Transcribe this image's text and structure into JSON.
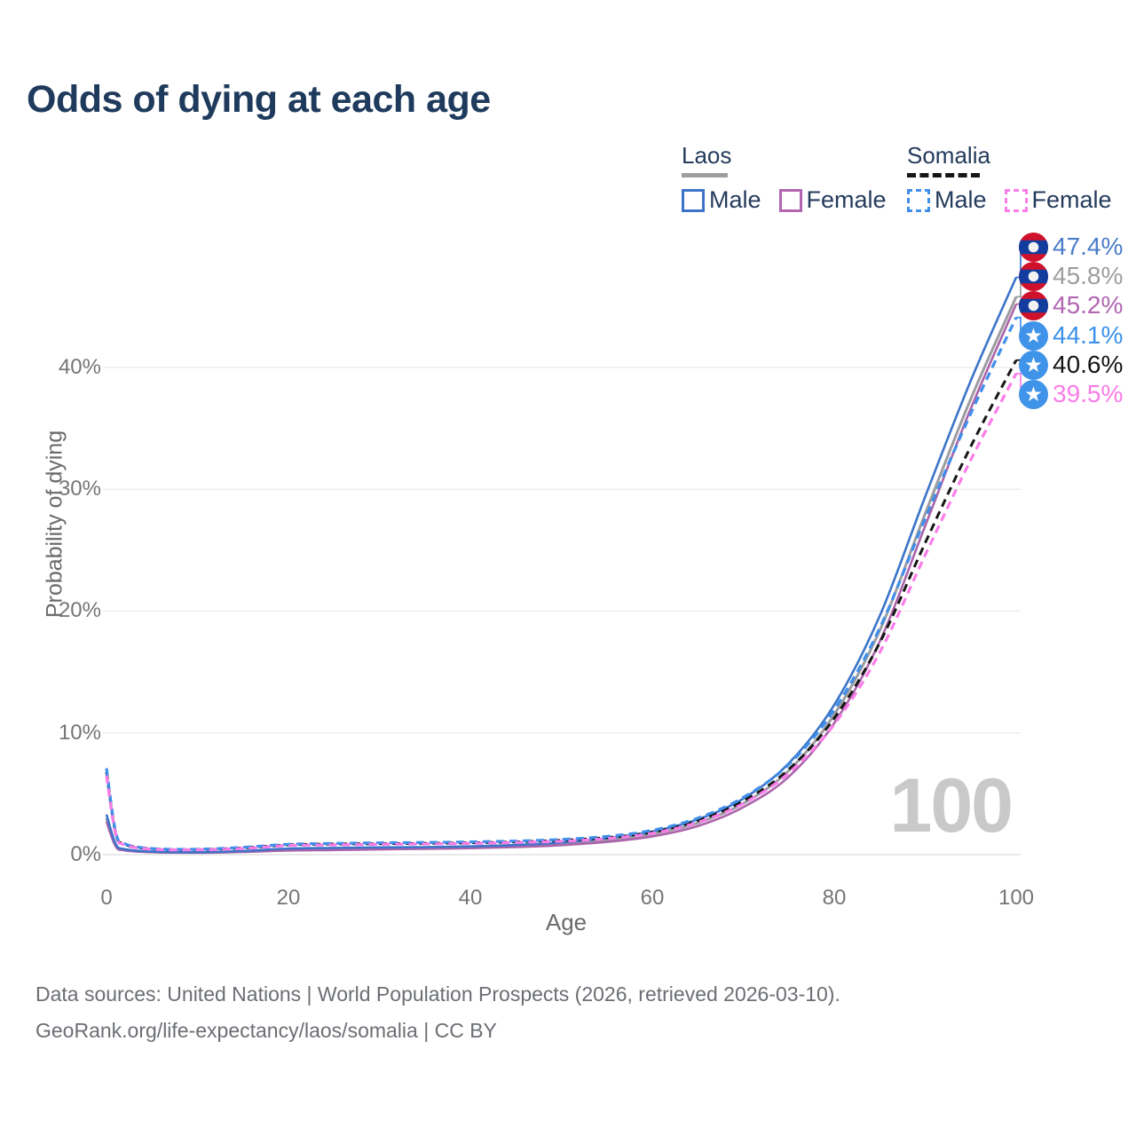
{
  "title": "Odds of dying at each age",
  "legend": {
    "groups": [
      {
        "country": "Laos",
        "items": [
          {
            "label": "Male"
          },
          {
            "label": "Female"
          }
        ]
      },
      {
        "country": "Somalia",
        "items": [
          {
            "label": "Male"
          },
          {
            "label": "Female"
          }
        ]
      }
    ]
  },
  "chart_data": {
    "type": "line",
    "title": "Odds of dying at each age",
    "xlabel": "Age",
    "ylabel": "Probability of dying",
    "xlim": [
      0,
      100
    ],
    "ylim": [
      0,
      48
    ],
    "grid": "horizontal-only",
    "legend_position": "top-right",
    "age_marker": "100",
    "xticks": [
      0,
      20,
      40,
      60,
      80,
      100
    ],
    "yticks": [
      "0%",
      "10%",
      "20%",
      "30%",
      "40%"
    ],
    "ytick_values": [
      0,
      10,
      20,
      30,
      40
    ],
    "x": [
      0,
      1,
      2,
      5,
      10,
      15,
      20,
      25,
      30,
      35,
      40,
      45,
      50,
      55,
      60,
      65,
      70,
      75,
      80,
      85,
      90,
      95,
      100
    ],
    "series": [
      {
        "id": "laos-male",
        "name": "Laos Male",
        "color": "#3b74c8",
        "label_color": "#4a7dc9",
        "dash": "",
        "width": 2.6,
        "flag": "laos",
        "end_label": "47.4%",
        "values": [
          3.3,
          0.9,
          0.45,
          0.25,
          0.2,
          0.3,
          0.5,
          0.55,
          0.6,
          0.62,
          0.68,
          0.8,
          1.0,
          1.35,
          1.9,
          2.9,
          4.6,
          7.5,
          12.3,
          19.6,
          29.4,
          38.9,
          47.4
        ]
      },
      {
        "id": "laos-both-sexes",
        "name": "Laos Both sexes",
        "color": "#9c9ca1",
        "label_color": "#9e9ea0",
        "dash": "",
        "width": 3,
        "flag": "laos",
        "end_label": "45.8%",
        "values": [
          3.0,
          0.8,
          0.4,
          0.22,
          0.18,
          0.26,
          0.42,
          0.47,
          0.52,
          0.55,
          0.6,
          0.7,
          0.88,
          1.18,
          1.7,
          2.6,
          4.2,
          6.9,
          11.5,
          18.4,
          28.0,
          37.4,
          45.8
        ]
      },
      {
        "id": "laos-female",
        "name": "Laos Female",
        "color": "#ab63ab",
        "label_color": "#b266b2",
        "dash": "",
        "width": 2.6,
        "flag": "laos",
        "end_label": "45.2%",
        "values": [
          2.7,
          0.7,
          0.35,
          0.2,
          0.16,
          0.22,
          0.34,
          0.38,
          0.43,
          0.48,
          0.53,
          0.62,
          0.78,
          1.05,
          1.5,
          2.35,
          3.9,
          6.4,
          10.8,
          17.5,
          27.0,
          36.6,
          45.2
        ]
      },
      {
        "id": "somalia-male",
        "name": "Somalia Male",
        "color": "#3f8fea",
        "label_color": "#3b91ea",
        "dash": "9 6",
        "width": 3.2,
        "flag": "somalia",
        "end_label": "44.1%",
        "values": [
          7.1,
          1.9,
          0.9,
          0.5,
          0.45,
          0.6,
          0.85,
          0.92,
          0.97,
          1.0,
          1.05,
          1.12,
          1.25,
          1.5,
          2.0,
          3.0,
          4.7,
          7.4,
          11.9,
          18.6,
          27.6,
          36.2,
          44.1
        ]
      },
      {
        "id": "somalia-both-sexes",
        "name": "Somalia Both sexes",
        "color": "#161616",
        "label_color": "#141414",
        "dash": "9 6",
        "width": 3,
        "flag": "somalia",
        "end_label": "40.6%",
        "values": [
          6.8,
          1.8,
          0.85,
          0.47,
          0.42,
          0.55,
          0.8,
          0.87,
          0.9,
          0.93,
          0.97,
          1.05,
          1.18,
          1.4,
          1.85,
          2.8,
          4.4,
          7.0,
          11.2,
          17.4,
          25.6,
          33.5,
          40.6
        ]
      },
      {
        "id": "somalia-female",
        "name": "Somalia Female",
        "color": "#fa7ce8",
        "label_color": "#fa7ce8",
        "dash": "9 6",
        "width": 3.2,
        "flag": "somalia",
        "end_label": "39.5%",
        "values": [
          6.5,
          1.7,
          0.8,
          0.44,
          0.4,
          0.5,
          0.75,
          0.8,
          0.85,
          0.88,
          0.92,
          1.0,
          1.1,
          1.32,
          1.75,
          2.65,
          4.2,
          6.7,
          10.7,
          16.6,
          24.6,
          32.4,
          39.5
        ]
      }
    ]
  },
  "footer": {
    "line1": "Data sources: United Nations | World Population Prospects (2026, retrieved 2026-03-10).",
    "line2": "GeoRank.org/life-expectancy/laos/somalia | CC BY"
  }
}
